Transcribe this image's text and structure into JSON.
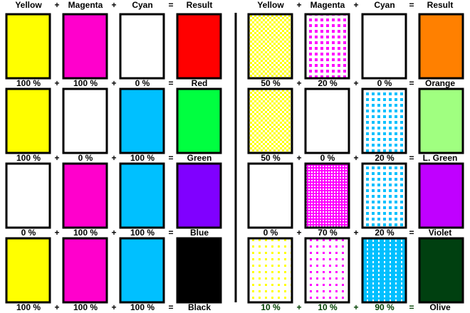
{
  "header": {
    "left": [
      "Yellow",
      "+",
      "Magenta",
      "+",
      "Cyan",
      "=",
      "Result"
    ],
    "right": [
      "Yellow",
      "+",
      "Magenta",
      "+",
      "Cyan",
      "=",
      "Result"
    ]
  },
  "rows": [
    {
      "left": [
        "100 %",
        "+",
        "100 %",
        "+",
        "0 %",
        "=",
        "Red"
      ],
      "right": [
        "50 %",
        "+",
        "20 %",
        "+",
        "0 %",
        "=",
        "Orange"
      ]
    },
    {
      "left": [
        "100 %",
        "+",
        "0 %",
        "+",
        "100 %",
        "=",
        "Green"
      ],
      "right": [
        "50 %",
        "+",
        "0 %",
        "+",
        "20 %",
        "=",
        "L. Green"
      ]
    },
    {
      "left": [
        "0 %",
        "+",
        "100 %",
        "+",
        "100 %",
        "=",
        "Blue"
      ],
      "right": [
        "0 %",
        "+",
        "70 %",
        "+",
        "20 %",
        "=",
        "Violet"
      ]
    },
    {
      "left": [
        "100 %",
        "+",
        "100 %",
        "+",
        "100 %",
        "=",
        "Black"
      ],
      "right": [
        "10 %",
        "+",
        "10 %",
        "+",
        "90 %",
        "=",
        "Olive"
      ]
    }
  ]
}
